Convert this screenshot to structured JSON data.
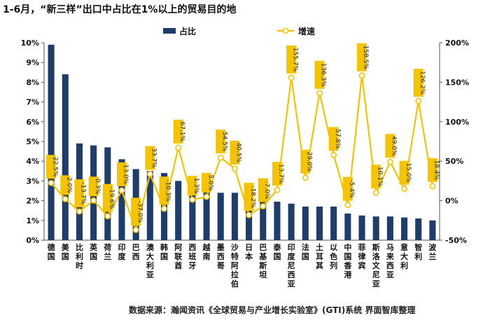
{
  "chart_data": {
    "type": "bar",
    "title": "1-6月，“新三样”出口中占比在1%以上的贸易目的地",
    "source": "数据来源：瀚闻资讯《全球贸易与产业增长实验室》(GTI)系统  界面智库整理",
    "categories": [
      "德国",
      "美国",
      "比利时",
      "英国",
      "荷兰",
      "印度",
      "巴西",
      "澳大利亚",
      "韩国",
      "阿联酋",
      "西班牙",
      "越南",
      "墨西哥",
      "沙特阿拉伯",
      "日本",
      "巴基斯坦",
      "泰国",
      "印度尼西亚",
      "法国",
      "土耳其",
      "以色列",
      "中国香港",
      "菲律宾",
      "斯洛文尼亚",
      "马来西亚",
      "意大利",
      "智利",
      "波兰"
    ],
    "series": [
      {
        "name": "占比",
        "kind": "bar",
        "axis": "left",
        "color": "#1f3d6b",
        "values": [
          9.9,
          8.4,
          4.9,
          4.8,
          4.7,
          4.1,
          3.6,
          3.5,
          3.4,
          3.0,
          3.0,
          2.9,
          2.4,
          2.4,
          2.0,
          2.0,
          1.95,
          1.85,
          1.7,
          1.7,
          1.7,
          1.35,
          1.25,
          1.2,
          1.2,
          1.15,
          1.1,
          1.0
        ]
      },
      {
        "name": "增速",
        "kind": "line",
        "axis": "right",
        "color": "#f5c400",
        "values": [
          22.5,
          2.0,
          -13.7,
          0.3,
          -19.6,
          13.0,
          -37.0,
          33.7,
          -10.3,
          67.1,
          1.3,
          5.0,
          54.5,
          40.5,
          -18.2,
          -7.0,
          13.7,
          155.7,
          29.0,
          136.3,
          57.8,
          -5.4,
          158.5,
          10.1,
          49.0,
          15.0,
          126.2,
          18.4
        ],
        "labels": [
          "22.5%",
          "2.0%",
          "-13.7%",
          "0.3%",
          "-19.6%",
          "13.0%",
          "-37.0%",
          "33.7%",
          "-10.3%",
          "67.1%",
          "1.3%",
          "5.0%",
          "54.5%",
          "40.5%",
          "-18.2%",
          "-7.0%",
          "13.7%",
          "155.7%",
          "29.0%",
          "136.3%",
          "57.8%",
          "-5.4%",
          "158.5%",
          "10.1%",
          "49.0%",
          "15.0%",
          "126.2%",
          "18.4%"
        ]
      }
    ],
    "left_axis": {
      "min": 0,
      "max": 10,
      "ticks": [
        "0%",
        "1%",
        "2%",
        "3%",
        "4%",
        "5%",
        "6%",
        "7%",
        "8%",
        "9%",
        "10%"
      ]
    },
    "right_axis": {
      "min": -50,
      "max": 200,
      "ticks": [
        "-50%",
        "0%",
        "50%",
        "100%",
        "150%",
        "200%"
      ]
    },
    "legend_position": "top-center",
    "grid": false
  }
}
